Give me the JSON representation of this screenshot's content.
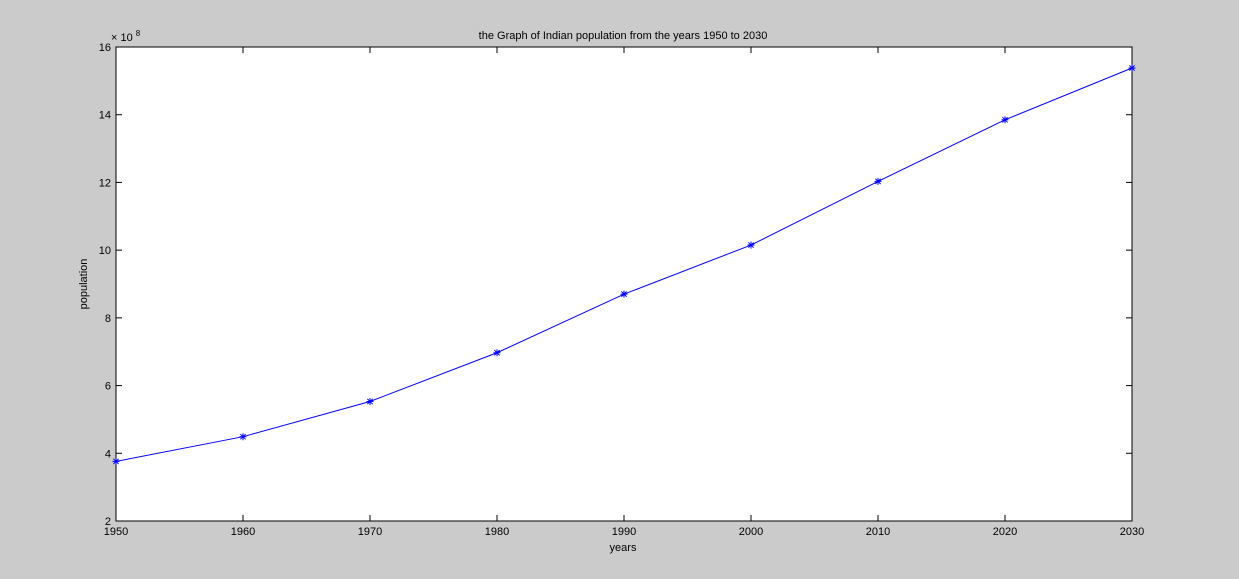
{
  "chart_data": {
    "type": "line",
    "title": "the Graph of Indian population from the years 1950 to 2030",
    "xlabel": "years",
    "ylabel": "population",
    "y_exponent_label": "× 10",
    "y_exponent_power": "8",
    "y_scale": 100000000,
    "x": [
      1950,
      1960,
      1970,
      1980,
      1990,
      2000,
      2010,
      2020,
      2030
    ],
    "series": [
      {
        "values": [
          376000000,
          449000000,
          553000000,
          697000000,
          870000000,
          1015000000,
          1203000000,
          1385000000,
          1538000000
        ],
        "color": "#0000ff",
        "marker": "asterisk"
      }
    ],
    "xlim": [
      1950,
      2030
    ],
    "ylim": [
      200000000,
      1600000000
    ],
    "xticks": [
      1950,
      1960,
      1970,
      1980,
      1990,
      2000,
      2010,
      2020,
      2030
    ],
    "yticks": [
      2,
      4,
      6,
      8,
      10,
      12,
      14,
      16
    ],
    "grid": false,
    "legend": "none",
    "colors": {
      "background": "#cbcbcb",
      "plot_area": "#ffffff",
      "axes": "#000000",
      "line": "#0000ff"
    }
  }
}
